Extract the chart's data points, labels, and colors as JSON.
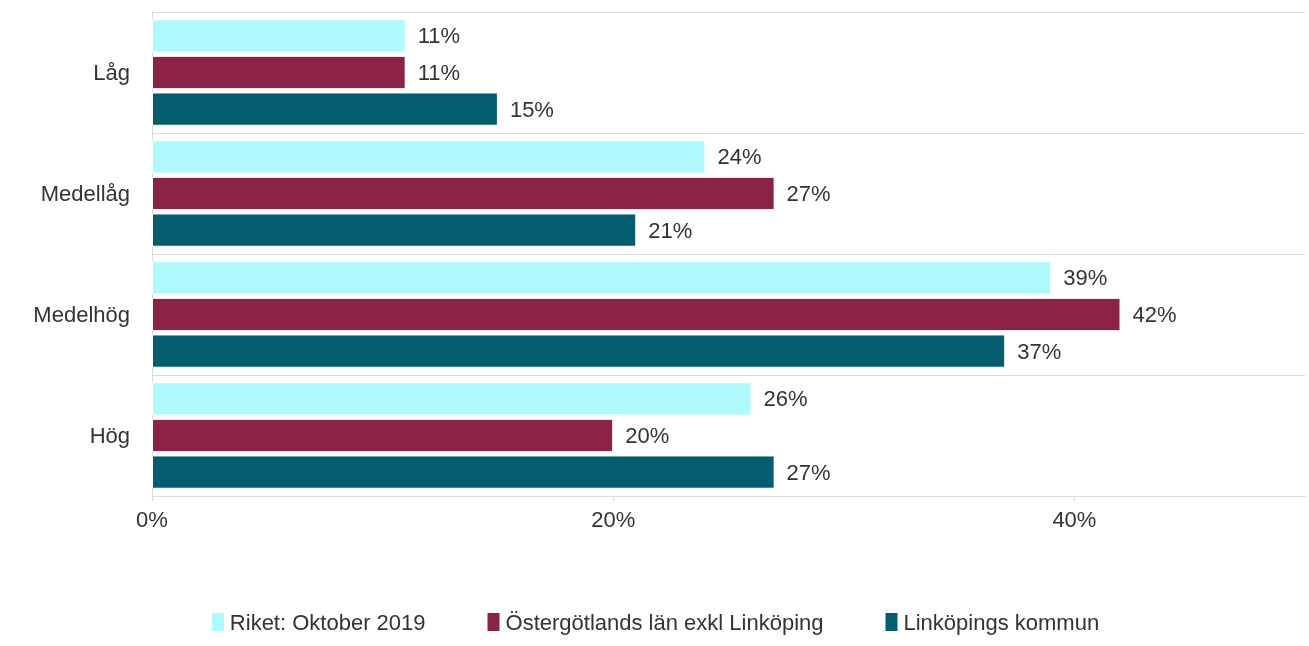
{
  "chart_data": {
    "type": "bar",
    "orientation": "horizontal",
    "categories": [
      "Låg",
      "Medellåg",
      "Medelhög",
      "Hög"
    ],
    "series": [
      {
        "name": "Riket: Oktober 2019",
        "color": "#adf9fc",
        "values": [
          11,
          24,
          39,
          26
        ],
        "value_labels": [
          "11%",
          "24%",
          "39%",
          "26%"
        ]
      },
      {
        "name": "Östergötlands län exkl Linköping",
        "color": "#8b2349",
        "values": [
          11,
          27,
          42,
          20
        ],
        "value_labels": [
          "11%",
          "27%",
          "42%",
          "20%"
        ]
      },
      {
        "name": "Linköpings kommun",
        "color": "#035d6e",
        "values": [
          15,
          21,
          37,
          27
        ],
        "value_labels": [
          "15%",
          "21%",
          "37%",
          "27%"
        ]
      }
    ],
    "xlim": [
      0,
      50
    ],
    "xticks": [
      {
        "value": 0,
        "label": "0%"
      },
      {
        "value": 20,
        "label": "20%"
      },
      {
        "value": 40,
        "label": "40%"
      }
    ],
    "grid": "y",
    "legend": "bottom"
  }
}
